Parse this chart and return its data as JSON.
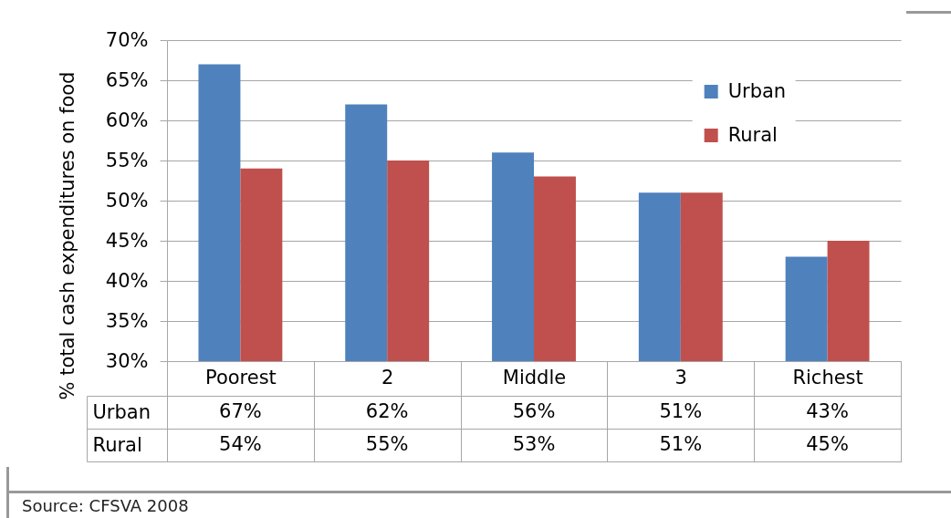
{
  "chart_data": {
    "type": "bar",
    "categories": [
      "Poorest",
      "2",
      "Middle",
      "3",
      "Richest"
    ],
    "series": [
      {
        "name": "Urban",
        "color": "#4f81bd",
        "values": [
          67,
          62,
          56,
          51,
          43
        ],
        "value_labels": [
          "67%",
          "62%",
          "56%",
          "51%",
          "43%"
        ]
      },
      {
        "name": "Rural",
        "color": "#c0504d",
        "values": [
          54,
          55,
          53,
          51,
          45
        ],
        "value_labels": [
          "54%",
          "55%",
          "53%",
          "51%",
          "45%"
        ]
      }
    ],
    "ylabel": "% total cash expenditures on food",
    "ylim": [
      30,
      70
    ],
    "yticks": [
      {
        "value": 30,
        "label": "30%"
      },
      {
        "value": 35,
        "label": "35%"
      },
      {
        "value": 40,
        "label": "40%"
      },
      {
        "value": 45,
        "label": "45%"
      },
      {
        "value": 50,
        "label": "50%"
      },
      {
        "value": 55,
        "label": "55%"
      },
      {
        "value": 60,
        "label": "60%"
      },
      {
        "value": 65,
        "label": "65%"
      },
      {
        "value": 70,
        "label": "70%"
      }
    ],
    "grid": "y",
    "legend": "top right",
    "annotations": [
      "Source: CFSVA 2008"
    ]
  }
}
